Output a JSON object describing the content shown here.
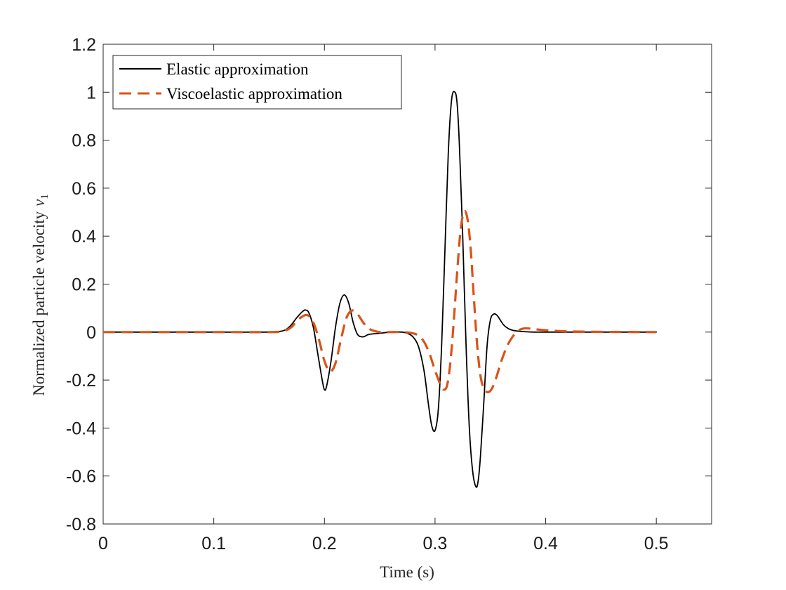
{
  "chart_data": {
    "type": "line",
    "title": "",
    "xlabel": "Time (s)",
    "ylabel": "Normalized particle velocity",
    "ylabel_symbol": "v",
    "ylabel_subscript": "1",
    "xlim": [
      0,
      0.55
    ],
    "ylim": [
      -0.8,
      1.2
    ],
    "xticks": [
      0,
      0.1,
      0.2,
      0.3,
      0.4,
      0.5
    ],
    "xtick_labels": [
      "0",
      "0.1",
      "0.2",
      "0.3",
      "0.4",
      "0.5"
    ],
    "yticks": [
      -0.8,
      -0.6,
      -0.4,
      -0.2,
      0,
      0.2,
      0.4,
      0.6,
      0.8,
      1,
      1.2
    ],
    "ytick_labels": [
      "-0.8",
      "-0.6",
      "-0.4",
      "-0.2",
      "0",
      "0.2",
      "0.4",
      "0.6",
      "0.8",
      "1",
      "1.2"
    ],
    "grid": false,
    "legend_position": "top-left",
    "series": [
      {
        "name": "Elastic approximation",
        "color": "#000000",
        "dash": "solid",
        "x": [
          0,
          0.05,
          0.1,
          0.15,
          0.16,
          0.165,
          0.17,
          0.175,
          0.18,
          0.183,
          0.186,
          0.19,
          0.194,
          0.198,
          0.2,
          0.202,
          0.206,
          0.21,
          0.214,
          0.218,
          0.222,
          0.226,
          0.23,
          0.235,
          0.24,
          0.25,
          0.26,
          0.27,
          0.275,
          0.28,
          0.285,
          0.29,
          0.294,
          0.297,
          0.3,
          0.303,
          0.306,
          0.309,
          0.312,
          0.315,
          0.318,
          0.32,
          0.322,
          0.325,
          0.328,
          0.331,
          0.334,
          0.337,
          0.339,
          0.341,
          0.344,
          0.347,
          0.35,
          0.353,
          0.356,
          0.359,
          0.362,
          0.366,
          0.37,
          0.375,
          0.38,
          0.39,
          0.4,
          0.45,
          0.5
        ],
        "y": [
          0,
          0,
          0,
          0,
          0.003,
          0.01,
          0.03,
          0.06,
          0.085,
          0.092,
          0.08,
          0.02,
          -0.09,
          -0.2,
          -0.24,
          -0.225,
          -0.12,
          0.02,
          0.12,
          0.155,
          0.12,
          0.04,
          -0.01,
          -0.02,
          -0.01,
          -0.005,
          0,
          0,
          -0.005,
          -0.02,
          -0.06,
          -0.16,
          -0.3,
          -0.39,
          -0.41,
          -0.32,
          -0.05,
          0.35,
          0.75,
          0.97,
          1.0,
          0.95,
          0.78,
          0.4,
          -0.05,
          -0.4,
          -0.58,
          -0.645,
          -0.62,
          -0.52,
          -0.3,
          -0.06,
          0.05,
          0.075,
          0.07,
          0.05,
          0.03,
          0.015,
          0.008,
          0.004,
          0.002,
          0,
          0,
          0,
          0
        ]
      },
      {
        "name": "Viscoelastic approximation",
        "color": "#D95319",
        "dash": "dashed",
        "x": [
          0,
          0.05,
          0.1,
          0.15,
          0.16,
          0.165,
          0.17,
          0.175,
          0.18,
          0.185,
          0.19,
          0.195,
          0.2,
          0.205,
          0.21,
          0.215,
          0.22,
          0.225,
          0.23,
          0.235,
          0.24,
          0.245,
          0.25,
          0.26,
          0.27,
          0.28,
          0.285,
          0.29,
          0.295,
          0.3,
          0.305,
          0.308,
          0.311,
          0.314,
          0.317,
          0.32,
          0.323,
          0.326,
          0.329,
          0.332,
          0.335,
          0.338,
          0.341,
          0.344,
          0.347,
          0.35,
          0.353,
          0.356,
          0.36,
          0.365,
          0.37,
          0.375,
          0.38,
          0.385,
          0.39,
          0.4,
          0.42,
          0.45,
          0.5
        ],
        "y": [
          0,
          0,
          0,
          0,
          0.002,
          0.007,
          0.02,
          0.045,
          0.065,
          0.07,
          0.04,
          -0.03,
          -0.12,
          -0.165,
          -0.13,
          -0.03,
          0.06,
          0.09,
          0.075,
          0.04,
          0.015,
          0.005,
          0,
          0,
          0,
          -0.005,
          -0.015,
          -0.04,
          -0.09,
          -0.16,
          -0.22,
          -0.24,
          -0.22,
          -0.12,
          0.05,
          0.25,
          0.42,
          0.5,
          0.48,
          0.36,
          0.15,
          -0.05,
          -0.18,
          -0.235,
          -0.25,
          -0.245,
          -0.22,
          -0.18,
          -0.12,
          -0.06,
          -0.02,
          0.005,
          0.015,
          0.015,
          0.012,
          0.008,
          0.003,
          0.001,
          0
        ]
      }
    ]
  }
}
